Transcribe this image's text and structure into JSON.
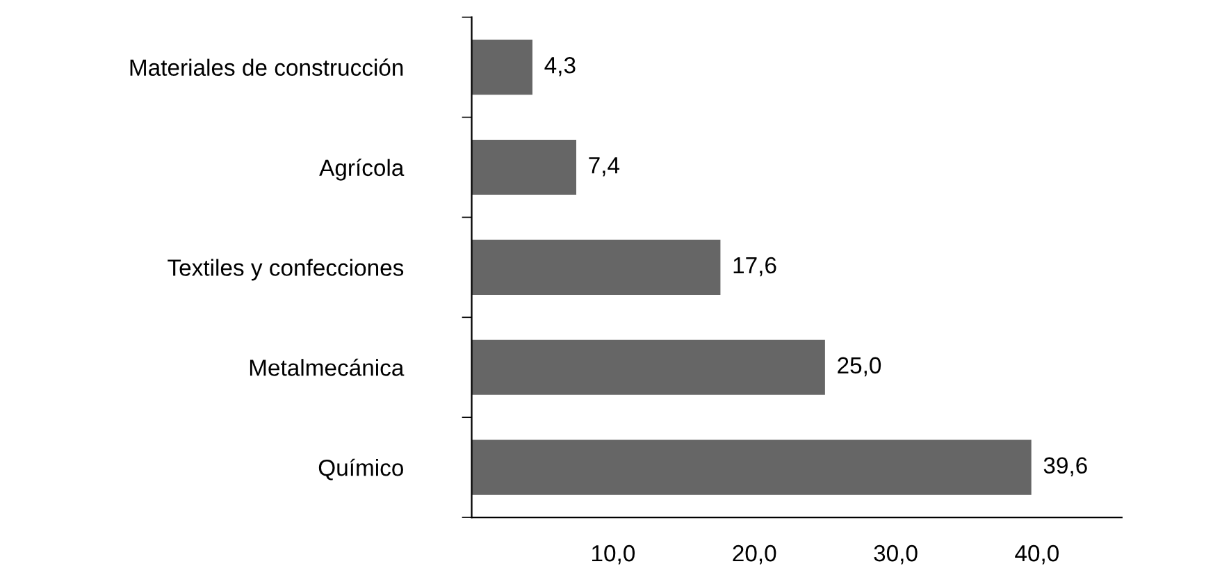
{
  "chart_data": {
    "type": "bar",
    "orientation": "horizontal",
    "categories": [
      "Materiales de construcción",
      "Agrícola",
      "Textiles y confecciones",
      "Metalmecánica",
      "Químico"
    ],
    "values": [
      4.3,
      7.4,
      17.6,
      25.0,
      39.6
    ],
    "value_labels": [
      "4,3",
      "7,4",
      "17,6",
      "25,0",
      "39,6"
    ],
    "color": "#666666",
    "xlim": [
      0,
      46
    ],
    "xticks": [
      {
        "value": 10,
        "label": "10,0"
      },
      {
        "value": 20,
        "label": "20,0"
      },
      {
        "value": 30,
        "label": "30,0"
      },
      {
        "value": 40,
        "label": "40,0"
      }
    ],
    "grid": false,
    "legend": false
  }
}
